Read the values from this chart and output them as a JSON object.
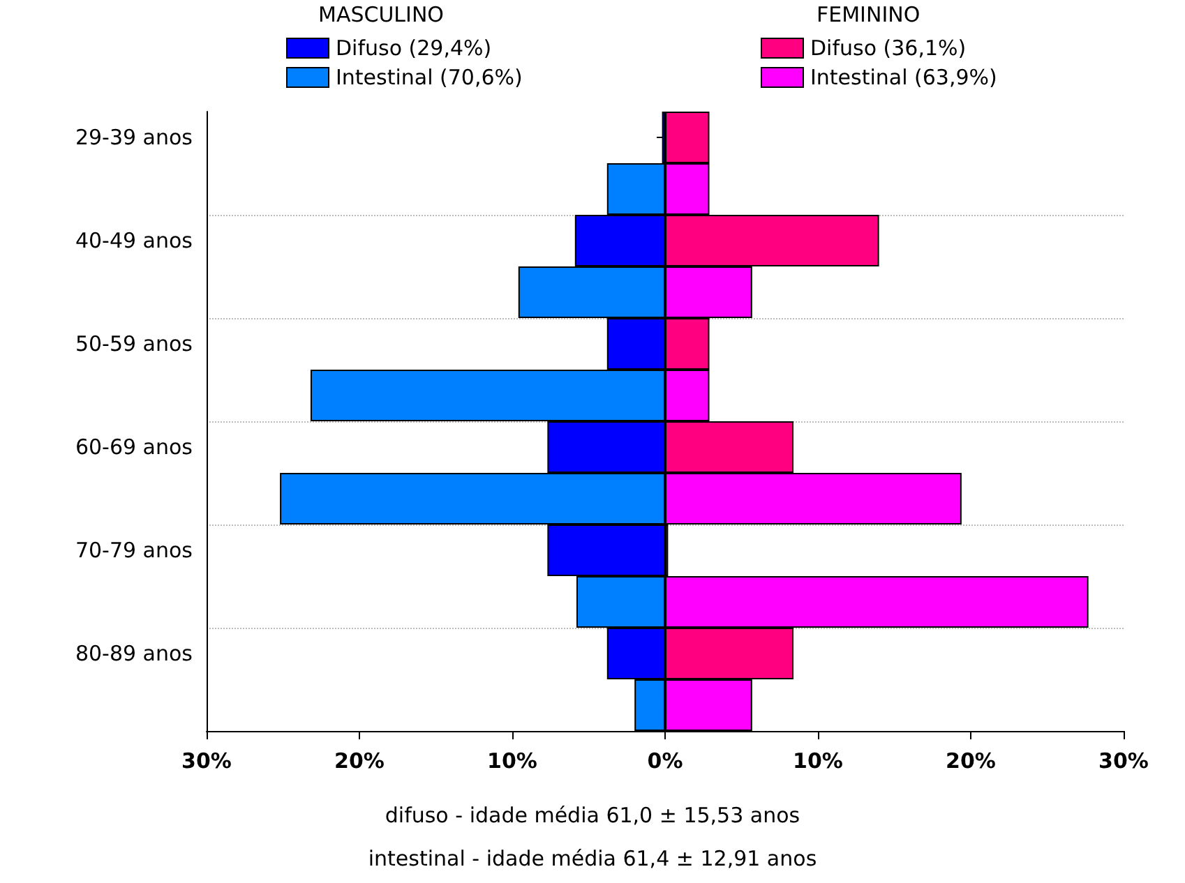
{
  "chart_data": {
    "type": "bar",
    "orientation": "horizontal",
    "stacked": true,
    "categories": [
      "29-39 anos",
      null,
      "40-49 anos",
      null,
      "50-59 anos",
      null,
      "60-69 anos",
      null,
      "70-79 anos",
      null,
      "80-89 anos",
      null
    ],
    "series": [
      {
        "name": "Difuso (29,4%)",
        "color": "#0000ff",
        "values": [
          -0.2,
          null,
          -5.9,
          null,
          -3.8,
          null,
          -7.7,
          null,
          -7.7,
          null,
          -3.8,
          null
        ]
      },
      {
        "name": "Intestinal (70,6%)",
        "color": "#0080ff",
        "values": [
          null,
          -3.8,
          null,
          -9.6,
          null,
          -23.2,
          null,
          -25.2,
          null,
          -5.8,
          null,
          -2.0
        ]
      },
      {
        "name": "Difuso (36,1%)",
        "color": "#ff0080",
        "values": [
          2.9,
          null,
          14.0,
          null,
          2.9,
          null,
          8.4,
          null,
          0.2,
          null,
          8.4,
          null
        ]
      },
      {
        "name": "Intestinal (63,9%)",
        "color": "#ff00ff",
        "values": [
          null,
          2.9,
          null,
          5.7,
          null,
          2.9,
          null,
          19.4,
          null,
          27.7,
          null,
          5.7
        ]
      }
    ],
    "xlim": [
      -30,
      30
    ],
    "xticks": [
      {
        "value": -30,
        "label": "30%"
      },
      {
        "value": -20,
        "label": "20%"
      },
      {
        "value": -10,
        "label": "10%"
      },
      {
        "value": 0,
        "label": "0%"
      },
      {
        "value": 10,
        "label": "10%"
      },
      {
        "value": 20,
        "label": "20%"
      },
      {
        "value": 30,
        "label": "30%"
      }
    ],
    "grid": "y",
    "legend": "top",
    "annotations": [
      "MASCULINO",
      "FEMININO",
      "difuso - idade média 61,0 ± 15,53 anos",
      "intestinal - idade média 61,4 ± 12,91 anos"
    ]
  }
}
